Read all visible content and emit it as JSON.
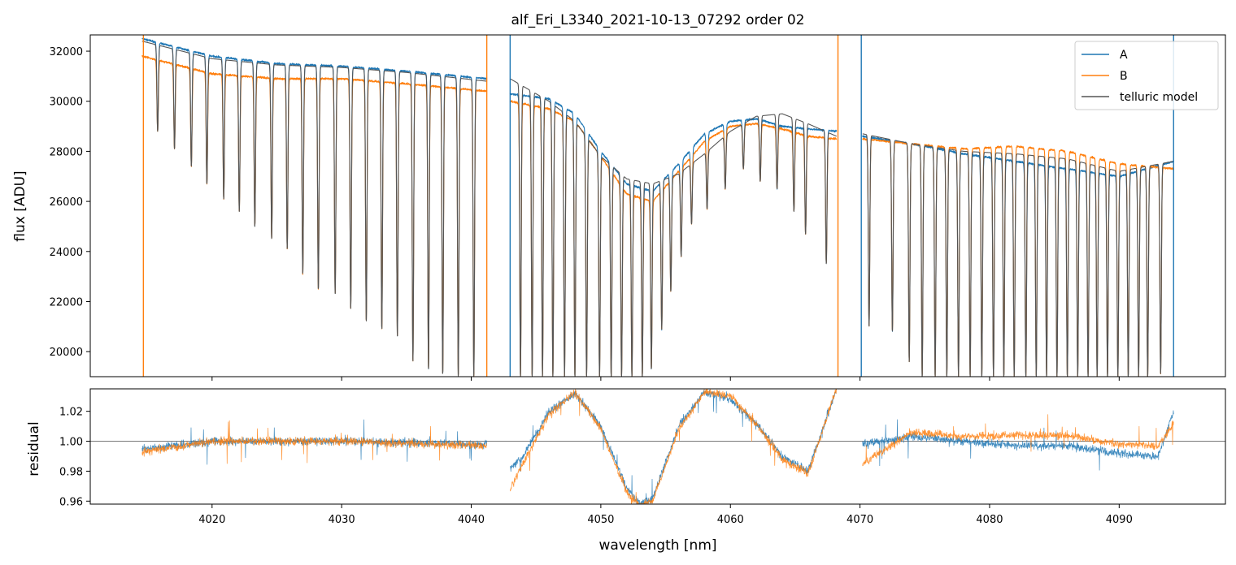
{
  "chart_data": [
    {
      "type": "line",
      "title": "alf_Eri_L3340_2021-10-13_07292  order 02",
      "xlabel": "",
      "ylabel": "flux [ADU]",
      "xlim": [
        4010.6,
        4098.2
      ],
      "ylim": [
        19000,
        32650
      ],
      "x_ticks": [
        4020,
        4030,
        4040,
        4050,
        4060,
        4070,
        4080,
        4090
      ],
      "x_tick_labels_shown": false,
      "y_ticks": [
        20000,
        22000,
        24000,
        26000,
        28000,
        30000,
        32000
      ],
      "y_tick_labels": [
        "20000",
        "22000",
        "24000",
        "26000",
        "28000",
        "30000",
        "32000"
      ],
      "grid": false,
      "legend_position": "top-right",
      "series": [
        {
          "name": "A",
          "color": "#1f77b4"
        },
        {
          "name": "B",
          "color": "#ff7f0e"
        },
        {
          "name": "telluric model",
          "color": "#555555"
        }
      ],
      "x_segments": [
        [
          4014.6,
          4041.2
        ],
        [
          4043.0,
          4068.2
        ],
        [
          4070.2,
          4094.2
        ]
      ],
      "continuum_A": {
        "x": [
          4014.6,
          4020,
          4025,
          4030,
          4035,
          4041.2,
          4043.0,
          4046,
          4048,
          4050,
          4052,
          4054,
          4056,
          4058,
          4060,
          4062,
          4064,
          4066,
          4068.2,
          4070.2,
          4074,
          4078,
          4082,
          4086,
          4090,
          4094.2
        ],
        "y": [
          32500,
          31800,
          31500,
          31400,
          31200,
          30900,
          30300,
          30100,
          29500,
          28000,
          26700,
          26400,
          27500,
          28700,
          29200,
          29300,
          29000,
          28900,
          28800,
          28600,
          28300,
          27900,
          27600,
          27300,
          27000,
          27600
        ]
      },
      "continuum_B": {
        "x": [
          4014.6,
          4020,
          4025,
          4030,
          4035,
          4041.2,
          4043.0,
          4046,
          4048,
          4050,
          4052,
          4054,
          4056,
          4058,
          4060,
          4062,
          4064,
          4066,
          4068.2,
          4070.2,
          4074,
          4078,
          4082,
          4086,
          4090,
          4094.2
        ],
        "y": [
          31800,
          31100,
          30900,
          30900,
          30700,
          30400,
          30000,
          29700,
          29200,
          27800,
          26300,
          26000,
          27200,
          28400,
          29000,
          29100,
          28900,
          28600,
          28500,
          28500,
          28300,
          28100,
          28200,
          28000,
          27500,
          27300
        ]
      },
      "continuum_model": {
        "x": [
          4014.6,
          4020,
          4025,
          4030,
          4035,
          4041.2,
          4043.0,
          4046,
          4048,
          4050,
          4052,
          4054,
          4056,
          4058,
          4060,
          4062,
          4064,
          4066,
          4068.2,
          4070.2,
          4074,
          4078,
          4082,
          4086,
          4090,
          4094.2
        ],
        "y": [
          32400,
          31700,
          31450,
          31350,
          31150,
          30800,
          30900,
          30000,
          29200,
          27800,
          26900,
          26700,
          27100,
          27900,
          28800,
          29400,
          29500,
          29100,
          28600,
          28700,
          28300,
          28000,
          27900,
          27700,
          27200,
          27600
        ]
      },
      "absorption_line_minima": {
        "x": [
          4015.8,
          4017.1,
          4018.4,
          4019.6,
          4020.9,
          4022.1,
          4023.3,
          4024.6,
          4025.8,
          4027.0,
          4028.2,
          4029.5,
          4030.7,
          4031.9,
          4033.1,
          4034.3,
          4035.5,
          4036.7,
          4037.8,
          4039.0,
          4040.2,
          4043.8,
          4044.7,
          4045.5,
          4046.3,
          4047.2,
          4048.0,
          4048.9,
          4049.9,
          4050.8,
          4051.6,
          4052.4,
          4053.2,
          4053.9,
          4054.7,
          4055.4,
          4056.2,
          4057.0,
          4058.2,
          4059.6,
          4061.0,
          4062.3,
          4063.6,
          4064.9,
          4065.8,
          4067.4,
          4070.7,
          4072.5,
          4073.8,
          4074.8,
          4075.8,
          4076.7,
          4077.6,
          4078.5,
          4079.4,
          4080.3,
          4081.1,
          4081.9,
          4082.8,
          4083.6,
          4084.4,
          4085.2,
          4086.0,
          4086.8,
          4087.6,
          4088.3,
          4089.1,
          4089.9,
          4090.7,
          4091.5,
          4092.2,
          4093.2
        ],
        "y": [
          28800,
          28100,
          27400,
          26700,
          26100,
          25600,
          25000,
          24500,
          24100,
          23100,
          22500,
          22300,
          21700,
          21200,
          20900,
          20600,
          19600,
          19300,
          19100,
          19000,
          19000,
          19000,
          19000,
          19000,
          19000,
          19000,
          19000,
          19000,
          19000,
          19000,
          19000,
          19000,
          19000,
          19300,
          20900,
          22400,
          23800,
          25100,
          25700,
          26500,
          27300,
          26800,
          26500,
          25600,
          24700,
          23500,
          21000,
          20800,
          19600,
          19000,
          19000,
          19000,
          19000,
          19000,
          19000,
          19000,
          19000,
          19000,
          19000,
          19000,
          19000,
          19000,
          19000,
          19000,
          19000,
          19000,
          19000,
          19000,
          19000,
          19000,
          19000,
          19100
        ]
      },
      "spikes": [
        {
          "x": 4014.7,
          "series": "B"
        },
        {
          "x": 4041.2,
          "series": "B"
        },
        {
          "x": 4043.0,
          "series": "A"
        },
        {
          "x": 4068.3,
          "series": "B"
        },
        {
          "x": 4070.1,
          "series": "A"
        },
        {
          "x": 4094.2,
          "series": "A"
        }
      ]
    },
    {
      "type": "line",
      "title": "",
      "xlabel": "wavelength [nm]",
      "ylabel": "residual",
      "xlim": [
        4010.6,
        4098.2
      ],
      "ylim": [
        0.958,
        1.035
      ],
      "x_ticks": [
        4020,
        4030,
        4040,
        4050,
        4060,
        4070,
        4080,
        4090
      ],
      "x_tick_labels": [
        "4020",
        "4030",
        "4040",
        "4050",
        "4060",
        "4070",
        "4080",
        "4090"
      ],
      "y_ticks": [
        0.96,
        0.98,
        1.0,
        1.02
      ],
      "y_tick_labels": [
        "0.96",
        "0.98",
        "1.00",
        "1.02"
      ],
      "reference_line": 1.0,
      "series_A_trend": {
        "x": [
          4014.6,
          4020,
          4030,
          4041.2,
          4043.0,
          4044,
          4046,
          4048,
          4050,
          4052,
          4053,
          4054,
          4056,
          4058,
          4060,
          4062,
          4064,
          4066,
          4068.2,
          4070.2,
          4074,
          4078,
          4082,
          4086,
          4090,
          4093,
          4094.2
        ],
        "y": [
          0.995,
          1.0,
          1.0,
          0.998,
          0.982,
          0.99,
          1.02,
          1.032,
          1.01,
          0.968,
          0.958,
          0.962,
          1.01,
          1.033,
          1.028,
          1.012,
          0.99,
          0.98,
          1.035,
          0.998,
          1.003,
          1.0,
          0.997,
          0.997,
          0.992,
          0.99,
          1.02
        ]
      },
      "series_B_trend": {
        "x": [
          4014.6,
          4020,
          4030,
          4041.2,
          4043.0,
          4044,
          4046,
          4048,
          4050,
          4052,
          4053,
          4054,
          4056,
          4058,
          4060,
          4062,
          4064,
          4066,
          4068.2,
          4070.2,
          4074,
          4078,
          4082,
          4086,
          4090,
          4093,
          4094.2
        ],
        "y": [
          0.993,
          1.0,
          1.0,
          0.997,
          0.968,
          0.985,
          1.018,
          1.033,
          1.008,
          0.966,
          0.957,
          0.96,
          1.008,
          1.033,
          1.03,
          1.012,
          0.988,
          0.978,
          1.036,
          0.985,
          1.006,
          1.003,
          1.004,
          1.004,
          0.998,
          0.997,
          1.012
        ]
      }
    }
  ]
}
